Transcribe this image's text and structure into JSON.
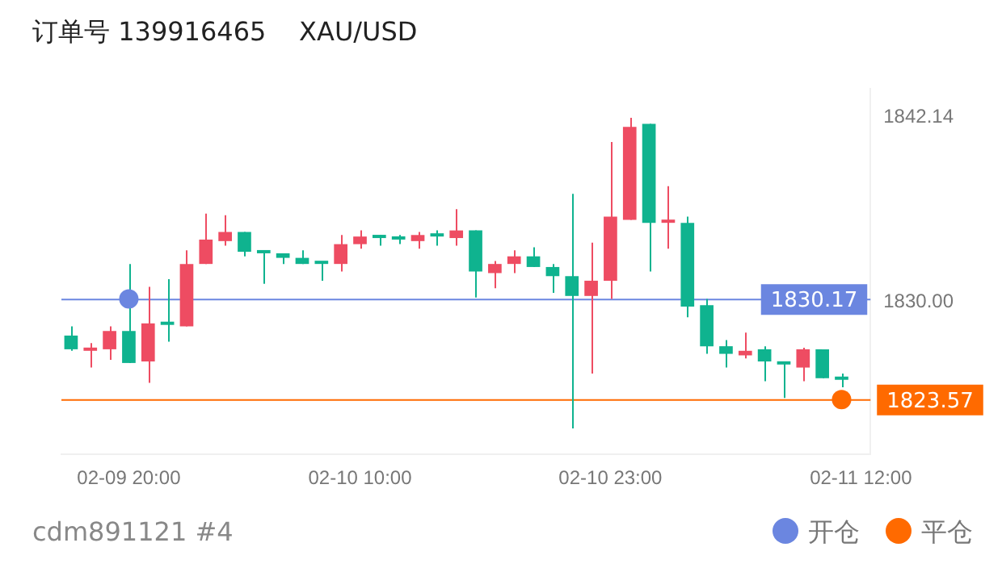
{
  "chart_data": {
    "type": "candlestick",
    "title": "订单号 139916465    XAU/USD",
    "annotations": [
      "cdm891121 #4"
    ],
    "categories": [
      null,
      null,
      null,
      "02-09 20:00",
      null,
      null,
      null,
      null,
      null,
      null,
      null,
      null,
      null,
      null,
      null,
      "02-10 10:00",
      null,
      null,
      null,
      null,
      null,
      null,
      null,
      null,
      null,
      null,
      null,
      null,
      "02-10 23:00",
      null,
      null,
      null,
      null,
      null,
      null,
      null,
      null,
      null,
      null,
      null,
      null,
      "02-11 12:00"
    ],
    "ohlc": [
      [
        1827.8,
        1828.4,
        1826.8,
        1826.9
      ],
      [
        1826.8,
        1827.3,
        1825.7,
        1826.9
      ],
      [
        1826.9,
        1828.4,
        1826.2,
        1828.1
      ],
      [
        1828.1,
        1832.5,
        1826.0,
        1826.0
      ],
      [
        1826.1,
        1831.0,
        1824.7,
        1828.6
      ],
      [
        1828.6,
        1831.5,
        1827.4,
        1828.5
      ],
      [
        1828.4,
        1833.4,
        1828.4,
        1832.5
      ],
      [
        1832.5,
        1835.8,
        1832.5,
        1834.1
      ],
      [
        1834.0,
        1835.7,
        1833.7,
        1834.6
      ],
      [
        1834.6,
        1834.6,
        1833.0,
        1833.3
      ],
      [
        1833.3,
        1833.4,
        1831.2,
        1833.2
      ],
      [
        1833.2,
        1833.2,
        1832.5,
        1832.9
      ],
      [
        1832.9,
        1833.4,
        1832.5,
        1832.5
      ],
      [
        1832.6,
        1832.6,
        1831.4,
        1832.5
      ],
      [
        1832.5,
        1834.4,
        1832.0,
        1833.8
      ],
      [
        1833.8,
        1834.7,
        1833.5,
        1834.3
      ],
      [
        1834.3,
        1834.4,
        1833.7,
        1834.2
      ],
      [
        1834.2,
        1834.4,
        1833.8,
        1834.1
      ],
      [
        1834.0,
        1834.6,
        1833.5,
        1834.4
      ],
      [
        1834.4,
        1834.7,
        1833.7,
        1834.3
      ],
      [
        1834.2,
        1836.1,
        1833.7,
        1834.7
      ],
      [
        1834.7,
        1834.7,
        1830.3,
        1832.0
      ],
      [
        1831.9,
        1832.7,
        1830.9,
        1832.5
      ],
      [
        1832.5,
        1833.4,
        1831.9,
        1833.0
      ],
      [
        1833.0,
        1833.6,
        1832.3,
        1832.3
      ],
      [
        1832.3,
        1832.5,
        1830.6,
        1831.7
      ],
      [
        1831.7,
        1837.1,
        1821.7,
        1830.4
      ],
      [
        1830.4,
        1833.9,
        1825.3,
        1831.4
      ],
      [
        1831.4,
        1840.5,
        1830.2,
        1835.6
      ],
      [
        1835.4,
        1842.1,
        1835.4,
        1841.5
      ],
      [
        1841.7,
        1841.7,
        1832.0,
        1835.2
      ],
      [
        1835.2,
        1837.6,
        1833.5,
        1835.3
      ],
      [
        1835.2,
        1835.6,
        1829.0,
        1829.7
      ],
      [
        1829.8,
        1830.2,
        1826.6,
        1827.1
      ],
      [
        1827.1,
        1827.5,
        1825.7,
        1826.6
      ],
      [
        1826.5,
        1828.0,
        1826.3,
        1826.8
      ],
      [
        1826.9,
        1827.1,
        1824.8,
        1826.1
      ],
      [
        1826.0,
        1826.0,
        1823.7,
        1825.9
      ],
      [
        1825.7,
        1827.0,
        1824.8,
        1826.9
      ],
      [
        1826.9,
        1826.9,
        1825.0,
        1825.0
      ],
      [
        1825.0,
        1825.3,
        1824.4,
        1824.9
      ],
      null
    ],
    "colors": [
      "#0fb38f",
      "#ee4c62",
      "#ee4c62",
      "#0fb38f",
      "#ee4c62",
      "#0fb38f",
      "#ee4c62",
      "#ee4c62",
      "#ee4c62",
      "#0fb38f",
      "#0fb38f",
      "#0fb38f",
      "#0fb38f",
      "#0fb38f",
      "#ee4c62",
      "#ee4c62",
      "#0fb38f",
      "#0fb38f",
      "#ee4c62",
      "#0fb38f",
      "#ee4c62",
      "#0fb38f",
      "#ee4c62",
      "#ee4c62",
      "#0fb38f",
      "#0fb38f",
      "#0fb38f",
      "#ee4c62",
      "#ee4c62",
      "#ee4c62",
      "#0fb38f",
      "#ee4c62",
      "#0fb38f",
      "#0fb38f",
      "#0fb38f",
      "#ee4c62",
      "#0fb38f",
      "#0fb38f",
      "#ee4c62",
      "#0fb38f",
      "#0fb38f",
      null
    ],
    "series": [
      {
        "name": "开仓",
        "type": "scatter",
        "color": "#6b86e0",
        "values": [
          null,
          null,
          null,
          1830.2,
          null,
          null,
          null,
          null,
          null,
          null,
          null,
          null,
          null,
          null,
          null,
          null,
          null,
          null,
          null,
          null,
          null,
          null,
          null,
          null,
          null,
          null,
          null,
          null,
          null,
          null,
          null,
          null,
          null,
          null,
          null,
          null,
          null,
          null,
          null,
          null,
          null,
          null
        ]
      },
      {
        "name": "平仓",
        "type": "scatter",
        "color": "#ff6a00",
        "values": [
          null,
          null,
          null,
          null,
          null,
          null,
          null,
          null,
          null,
          null,
          null,
          null,
          null,
          null,
          null,
          null,
          null,
          null,
          null,
          null,
          null,
          null,
          null,
          null,
          null,
          null,
          null,
          null,
          null,
          null,
          null,
          null,
          null,
          null,
          null,
          null,
          null,
          null,
          null,
          null,
          1823.6,
          null
        ]
      }
    ],
    "marker": "circle",
    "ylim": [
      1820,
      1844
    ],
    "yticks": [
      {
        "value": 1830,
        "label": "1830.00"
      },
      1842.14
    ],
    "ref_lines": [
      {
        "axis": "y",
        "value": 1830.17,
        "label": "1830.17",
        "color": "#6b86e0"
      },
      {
        "axis": "y",
        "value": 1823.57,
        "label": "1823.57",
        "color": "#ff6a00"
      }
    ],
    "legend": "bottom right"
  }
}
